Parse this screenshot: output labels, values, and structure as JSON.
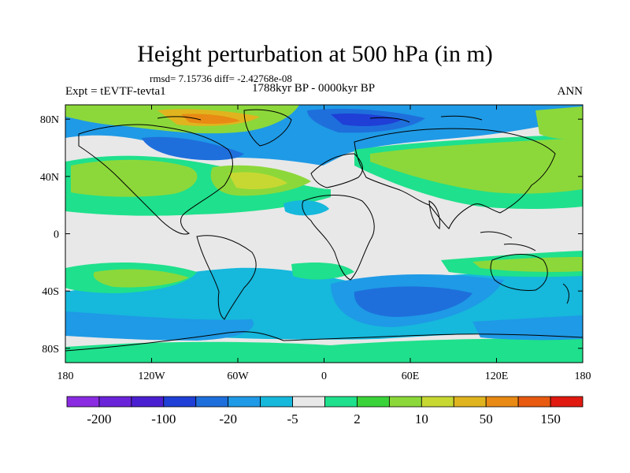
{
  "title": "Height perturbation at 500 hPa (in m)",
  "stats": "rmsd= 7.15736 diff= -2.42768e-08",
  "experiment": "Expt = tEVTF-tevta1",
  "period": "1788kyr BP - 0000kyr BP",
  "season": "ANN",
  "map": {
    "projection": "cylindrical equidistant",
    "lon_range": [
      -180,
      180
    ],
    "lat_range": [
      -90,
      90
    ],
    "x_ticks": [
      {
        "lon": -180,
        "label": "180"
      },
      {
        "lon": -120,
        "label": "120W"
      },
      {
        "lon": -60,
        "label": "60W"
      },
      {
        "lon": 0,
        "label": "0"
      },
      {
        "lon": 60,
        "label": "60E"
      },
      {
        "lon": 120,
        "label": "120E"
      },
      {
        "lon": 180,
        "label": "180"
      }
    ],
    "y_ticks": [
      {
        "lat": 80,
        "label": "80N"
      },
      {
        "lat": 40,
        "label": "40N"
      },
      {
        "lat": 0,
        "label": "0"
      },
      {
        "lat": -40,
        "label": "40S"
      },
      {
        "lat": -80,
        "label": "80S"
      }
    ]
  },
  "colorbar": {
    "colors": [
      "#8a2be2",
      "#6a23d8",
      "#4a1fd2",
      "#1f3fd6",
      "#1e6fdc",
      "#1f9ae6",
      "#16b8dc",
      "#e8e8e8",
      "#1fe08c",
      "#3ad43a",
      "#8cd83a",
      "#c8d832",
      "#e0b41e",
      "#e88a14",
      "#e85a10",
      "#e01a10"
    ],
    "labels": [
      {
        "after_index": 0,
        "text": "-200"
      },
      {
        "after_index": 2,
        "text": "-100"
      },
      {
        "after_index": 4,
        "text": "-20"
      },
      {
        "after_index": 6,
        "text": "-5"
      },
      {
        "after_index": 8,
        "text": "2"
      },
      {
        "after_index": 10,
        "text": "10"
      },
      {
        "after_index": 12,
        "text": "50"
      },
      {
        "after_index": 14,
        "text": "150"
      }
    ]
  }
}
